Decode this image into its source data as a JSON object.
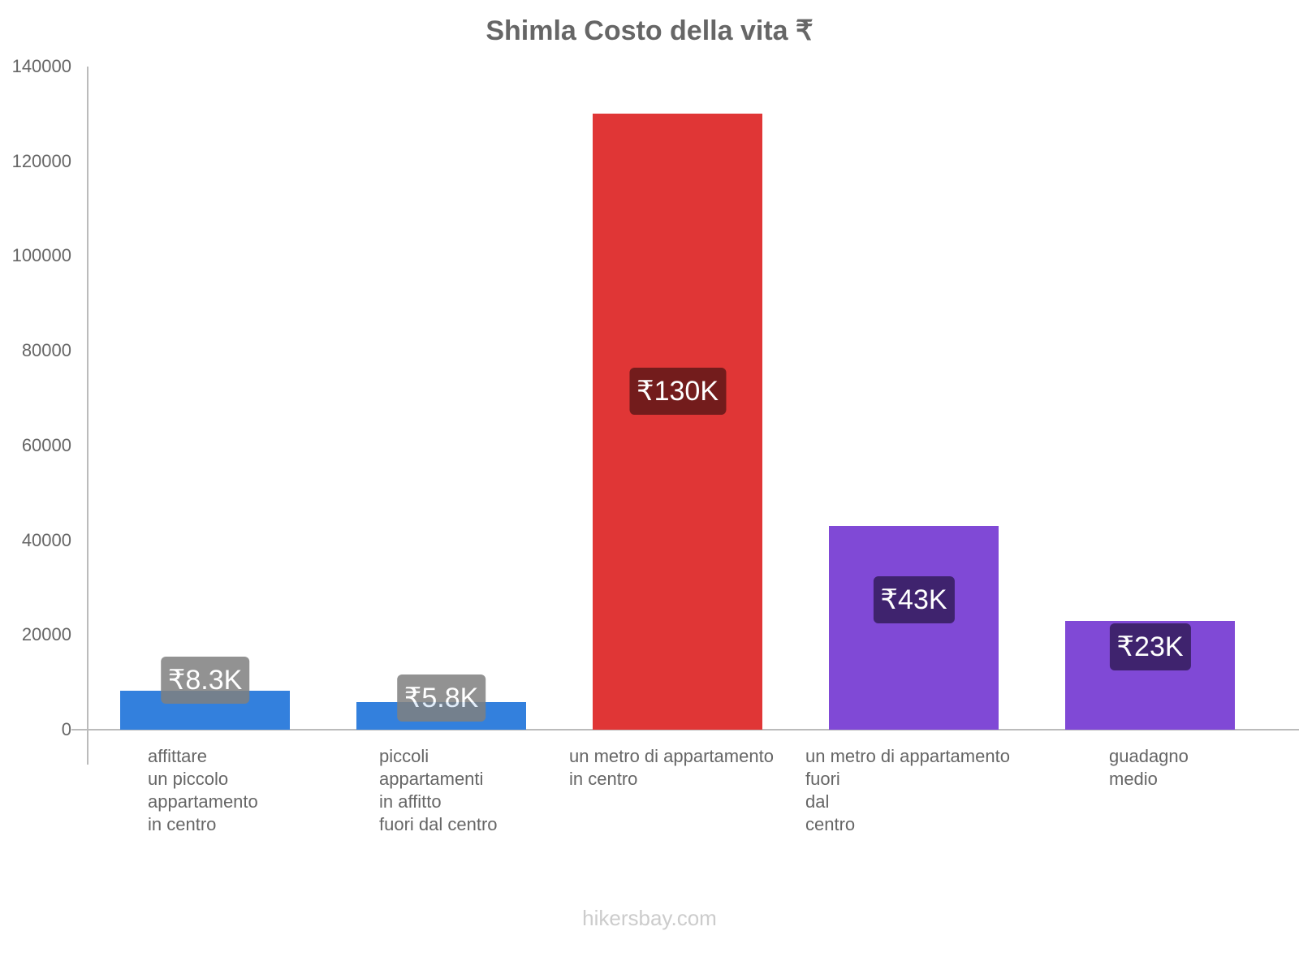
{
  "chart_data": {
    "type": "bar",
    "title": "Shimla Costo della vita ₹",
    "xlabel": "",
    "ylabel": "",
    "ylim": [
      0,
      140000
    ],
    "yticks": [
      0,
      20000,
      40000,
      60000,
      80000,
      100000,
      120000,
      140000
    ],
    "grid": false,
    "legend": null,
    "categories": [
      "affittare un piccolo appartamento in centro",
      "piccoli appartamenti in affitto fuori dal centro",
      "un metro di appartamento in centro",
      "un metro di appartamento fuori dal centro",
      "guadagno medio"
    ],
    "values": [
      8300,
      5800,
      130000,
      43000,
      23000
    ],
    "value_labels": [
      "₹8.3K",
      "₹5.8K",
      "₹130K",
      "₹43K",
      "₹23K"
    ],
    "colors": [
      "#3380dd",
      "#3380dd",
      "#e03636",
      "#8049d6",
      "#8049d6"
    ],
    "label_bg_colors": [
      "#808080",
      "#808080",
      "#731c1c",
      "#3f236e",
      "#3f236e"
    ]
  },
  "header": {
    "title": "Shimla Costo della vita ₹"
  },
  "y_axis": {
    "ticks": [
      {
        "label": "140000",
        "value": 140000
      },
      {
        "label": "120000",
        "value": 120000
      },
      {
        "label": "100000",
        "value": 100000
      },
      {
        "label": "80000",
        "value": 80000
      },
      {
        "label": "60000",
        "value": 60000
      },
      {
        "label": "40000",
        "value": 40000
      },
      {
        "label": "20000",
        "value": 20000
      },
      {
        "label": "0",
        "value": 0
      }
    ]
  },
  "bars": [
    {
      "label": "affittare\nun piccolo\nappartamento\nin centro",
      "value_label": "₹8.3K"
    },
    {
      "label": "piccoli\nappartamenti\nin affitto\nfuori dal centro",
      "value_label": "₹5.8K"
    },
    {
      "label": "un metro di appartamento\nin centro",
      "value_label": "₹130K"
    },
    {
      "label": "un metro di appartamento\nfuori\ndal\ncentro",
      "value_label": "₹43K"
    },
    {
      "label": "guadagno\nmedio",
      "value_label": "₹23K"
    }
  ],
  "footer": {
    "watermark": "hikersbay.com"
  }
}
